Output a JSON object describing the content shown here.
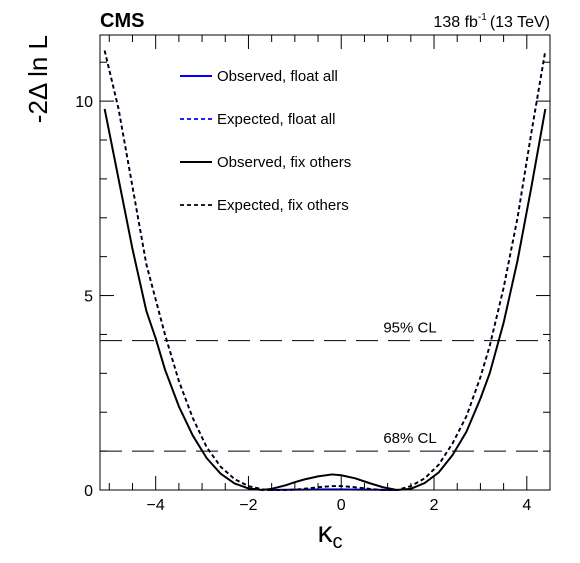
{
  "header": {
    "experiment": "CMS",
    "lumi_value": "138 fb",
    "lumi_exponent": "-1",
    "energy": "(13 TeV)"
  },
  "chart_data": {
    "type": "line",
    "xlabel_base": "κ",
    "xlabel_sub": "c",
    "ylabel": "-2Δ ln L",
    "xlim": [
      -5.2,
      4.5
    ],
    "ylim": [
      0,
      11.7
    ],
    "xticks": [
      -4,
      -2,
      0,
      2,
      4
    ],
    "yticks": [
      0,
      5,
      10
    ],
    "legend_position": "top-left",
    "grid": false,
    "thresholds": [
      {
        "label": "95% CL",
        "y": 3.84
      },
      {
        "label": "68% CL",
        "y": 1.0
      }
    ],
    "series": [
      {
        "name": "Observed, float all",
        "color": "#0000ff",
        "dash": "solid",
        "x": [
          -1.6,
          -1.2,
          -0.8,
          -0.4,
          0.0,
          0.4,
          0.8,
          1.2
        ],
        "y": [
          0.0,
          0.005,
          0.01,
          0.015,
          0.015,
          0.01,
          0.005,
          0.0
        ]
      },
      {
        "name": "Expected, float all",
        "color": "#0000ff",
        "dash": "dotted",
        "x": [
          -5.1,
          -4.8,
          -4.5,
          -4.2,
          -4.0,
          -3.8,
          -3.5,
          -3.2,
          -2.9,
          -2.6,
          -2.3,
          -2.0,
          -1.7,
          -1.5,
          -1.2,
          -1.0,
          -0.8,
          -0.5,
          -0.2,
          0.0,
          0.3,
          0.6,
          0.9,
          1.2,
          1.5,
          1.8,
          2.1,
          2.4,
          2.7,
          3.0,
          3.2,
          3.5,
          3.8,
          4.1,
          4.4
        ],
        "y": [
          11.3,
          9.8,
          7.8,
          5.8,
          4.9,
          4.0,
          2.8,
          1.85,
          1.1,
          0.6,
          0.28,
          0.1,
          0.02,
          0.0,
          0.0,
          0.01,
          0.03,
          0.07,
          0.1,
          0.1,
          0.07,
          0.03,
          0.0,
          0.0,
          0.1,
          0.3,
          0.65,
          1.2,
          1.9,
          2.9,
          3.7,
          5.2,
          7.0,
          9.2,
          11.3
        ]
      },
      {
        "name": "Observed, fix others",
        "color": "#000000",
        "dash": "solid",
        "x": [
          -5.1,
          -4.8,
          -4.5,
          -4.2,
          -4.0,
          -3.8,
          -3.5,
          -3.2,
          -2.9,
          -2.6,
          -2.3,
          -2.0,
          -1.7,
          -1.5,
          -1.2,
          -1.0,
          -0.8,
          -0.5,
          -0.2,
          0.0,
          0.3,
          0.6,
          0.9,
          1.2,
          1.5,
          1.8,
          2.1,
          2.4,
          2.7,
          3.0,
          3.2,
          3.5,
          3.8,
          4.1,
          4.4
        ],
        "y": [
          9.8,
          8.0,
          6.2,
          4.6,
          3.9,
          3.1,
          2.15,
          1.4,
          0.82,
          0.42,
          0.17,
          0.04,
          0.0,
          0.03,
          0.12,
          0.2,
          0.27,
          0.35,
          0.4,
          0.38,
          0.3,
          0.18,
          0.07,
          0.0,
          0.03,
          0.18,
          0.45,
          0.9,
          1.5,
          2.35,
          3.0,
          4.3,
          5.9,
          7.8,
          9.8
        ]
      },
      {
        "name": "Expected, fix others",
        "color": "#000000",
        "dash": "dotted",
        "x": [
          -5.1,
          -4.8,
          -4.5,
          -4.2,
          -4.0,
          -3.8,
          -3.5,
          -3.2,
          -2.9,
          -2.6,
          -2.3,
          -2.0,
          -1.7,
          -1.5,
          -1.2,
          -1.0,
          -0.8,
          -0.5,
          -0.2,
          0.0,
          0.3,
          0.6,
          0.9,
          1.2,
          1.5,
          1.8,
          2.1,
          2.4,
          2.7,
          3.0,
          3.2,
          3.5,
          3.8,
          4.1,
          4.4
        ],
        "y": [
          11.3,
          9.8,
          7.8,
          5.8,
          4.9,
          4.0,
          2.8,
          1.85,
          1.1,
          0.6,
          0.28,
          0.1,
          0.02,
          0.0,
          0.0,
          0.01,
          0.03,
          0.07,
          0.1,
          0.1,
          0.07,
          0.03,
          0.0,
          0.0,
          0.1,
          0.3,
          0.65,
          1.2,
          1.9,
          2.9,
          3.7,
          5.2,
          7.0,
          9.2,
          11.3
        ]
      }
    ]
  }
}
